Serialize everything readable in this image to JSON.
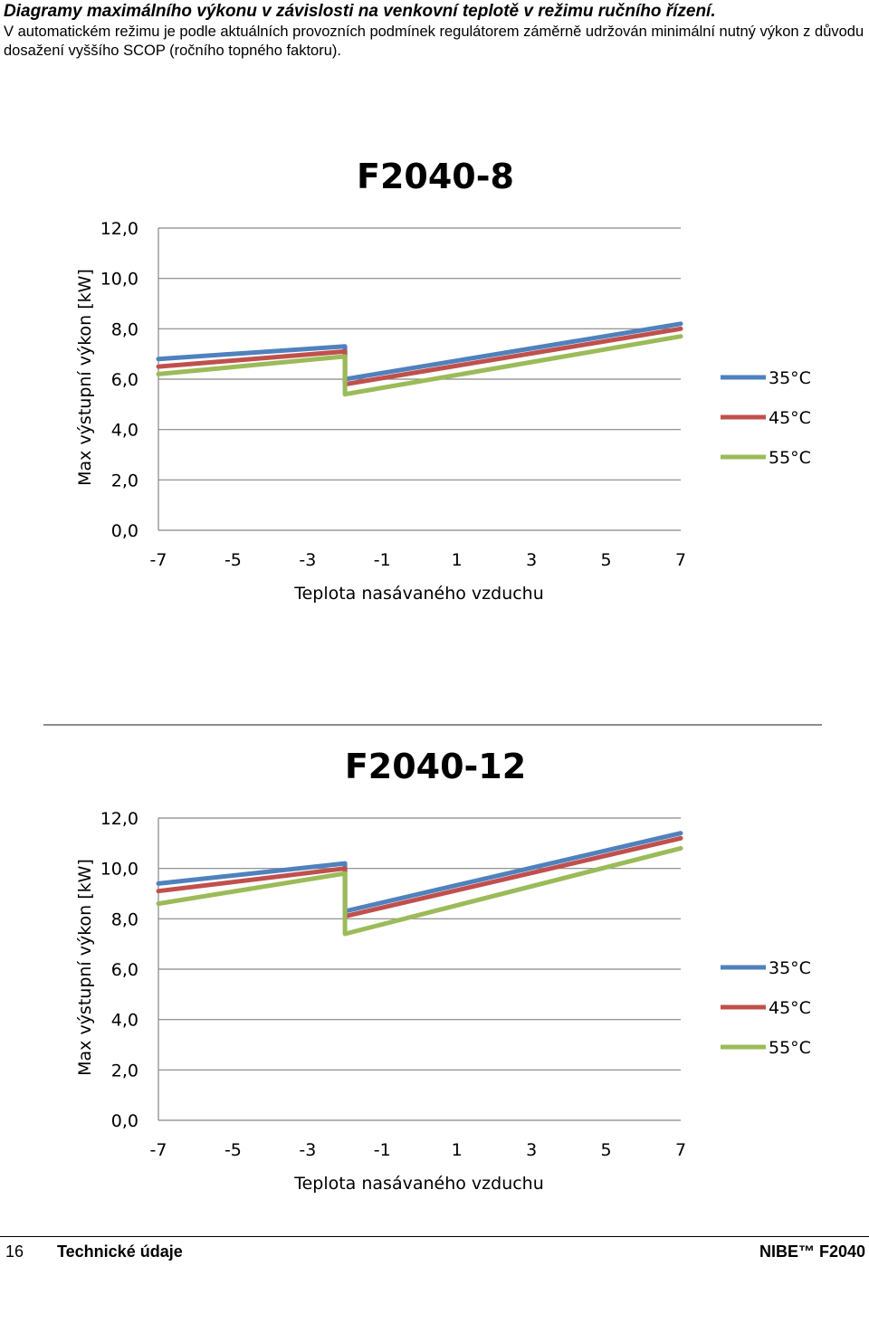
{
  "page": {
    "heading": "Diagramy maximálního výkonu v závislosti na venkovní teplotě v režimu ručního řízení.",
    "intro": "V automatickém režimu je podle aktuálních provozních podmínek regulátorem záměrně udržován minimální nutný výkon z důvodu dosažení vyššího SCOP (ročního topného faktoru)."
  },
  "footer": {
    "page_number": "16",
    "section": "Technické údaje",
    "brand": "NIBE™ F2040"
  },
  "colors": {
    "s35": "#4f81bd",
    "s45": "#c0504d",
    "s55": "#9bbb59",
    "grid": "#868686"
  },
  "chart_data": [
    {
      "type": "line",
      "title": "F2040-8",
      "xlabel": "Teplota nasávaného  vzduchu",
      "ylabel": "Max výstupní výkon [kW]",
      "xlim": [
        -7,
        7
      ],
      "ylim": [
        0,
        12
      ],
      "x_ticks": [
        "-7",
        "-5",
        "-3",
        "-1",
        "1",
        "3",
        "5",
        "7"
      ],
      "x_tick_values": [
        -7,
        -5,
        -3,
        -1,
        1,
        3,
        5,
        7
      ],
      "y_ticks": [
        "0,0",
        "2,0",
        "4,0",
        "6,0",
        "8,0",
        "10,0",
        "12,0"
      ],
      "y_tick_values": [
        0,
        2,
        4,
        6,
        8,
        10,
        12
      ],
      "grid": "horizontal",
      "legend": "right",
      "series": [
        {
          "name": "35°C",
          "color": "#4f81bd",
          "points": [
            [
              -7,
              6.8
            ],
            [
              -2,
              7.3
            ],
            [
              -2,
              6.0
            ],
            [
              7,
              8.2
            ]
          ]
        },
        {
          "name": "45°C",
          "color": "#c0504d",
          "points": [
            [
              -7,
              6.5
            ],
            [
              -2,
              7.1
            ],
            [
              -2,
              5.8
            ],
            [
              7,
              8.0
            ]
          ]
        },
        {
          "name": "55°C",
          "color": "#9bbb59",
          "points": [
            [
              -7,
              6.2
            ],
            [
              -2,
              6.9
            ],
            [
              -2,
              5.4
            ],
            [
              7,
              7.7
            ]
          ]
        }
      ]
    },
    {
      "type": "line",
      "title": "F2040-12",
      "xlabel": "Teplota nasávaného  vzduchu",
      "ylabel": "Max výstupní výkon [kW]",
      "xlim": [
        -7,
        7
      ],
      "ylim": [
        0,
        12
      ],
      "x_ticks": [
        "-7",
        "-5",
        "-3",
        "-1",
        "1",
        "3",
        "5",
        "7"
      ],
      "x_tick_values": [
        -7,
        -5,
        -3,
        -1,
        1,
        3,
        5,
        7
      ],
      "y_ticks": [
        "0,0",
        "2,0",
        "4,0",
        "6,0",
        "8,0",
        "10,0",
        "12,0"
      ],
      "y_tick_values": [
        0,
        2,
        4,
        6,
        8,
        10,
        12
      ],
      "grid": "horizontal",
      "legend": "right",
      "series": [
        {
          "name": "35°C",
          "color": "#4f81bd",
          "points": [
            [
              -7,
              9.4
            ],
            [
              -2,
              10.2
            ],
            [
              -2,
              8.3
            ],
            [
              7,
              11.4
            ]
          ]
        },
        {
          "name": "45°C",
          "color": "#c0504d",
          "points": [
            [
              -7,
              9.1
            ],
            [
              -2,
              10.0
            ],
            [
              -2,
              8.1
            ],
            [
              7,
              11.2
            ]
          ]
        },
        {
          "name": "55°C",
          "color": "#9bbb59",
          "points": [
            [
              -7,
              8.6
            ],
            [
              -2,
              9.8
            ],
            [
              -2,
              7.4
            ],
            [
              7,
              10.8
            ]
          ]
        }
      ]
    }
  ]
}
